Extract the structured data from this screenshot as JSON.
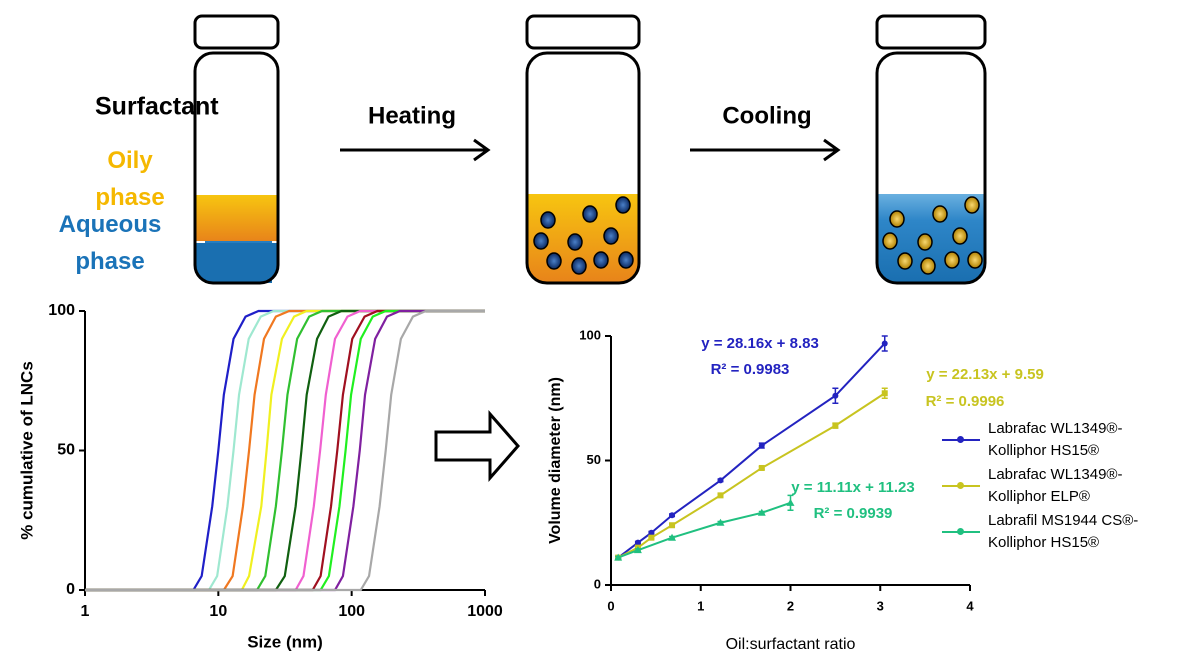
{
  "diagram": {
    "labels": {
      "surfactant": "Surfactant",
      "oily": "Oily phase",
      "aqueous": "Aqueous phase",
      "heating": "Heating",
      "cooling": "Cooling"
    }
  },
  "chart_data": [
    {
      "type": "line",
      "log_x": true,
      "ylabel": "% cumulative of LNCs",
      "xlabel": "Size (nm)",
      "xlim": [
        1,
        1000
      ],
      "ylim": [
        0,
        100
      ],
      "xticks": [
        1,
        10,
        100,
        1000
      ],
      "yticks": [
        0,
        50,
        100
      ],
      "series": [
        {
          "color": "#1f1fc8",
          "x": [
            1,
            6.5,
            7.5,
            9,
            10,
            11,
            13,
            16,
            20,
            1000
          ],
          "values": [
            0,
            0,
            5,
            30,
            50,
            70,
            90,
            98,
            100,
            100
          ]
        },
        {
          "color": "#9fe8d0",
          "x": [
            1,
            8.5,
            9.8,
            11.7,
            13,
            14.3,
            16.9,
            20.8,
            26,
            1000
          ],
          "values": [
            0,
            0,
            5,
            30,
            50,
            70,
            90,
            98,
            100,
            100
          ]
        },
        {
          "color": "#f07820",
          "x": [
            1,
            11,
            12.8,
            15.3,
            17,
            18.7,
            22,
            27,
            34,
            1000
          ],
          "values": [
            0,
            0,
            5,
            30,
            50,
            70,
            90,
            98,
            100,
            100
          ]
        },
        {
          "color": "#f0f020",
          "x": [
            1,
            15,
            17,
            21,
            23,
            25,
            30,
            37,
            46,
            1000
          ],
          "values": [
            0,
            0,
            5,
            30,
            50,
            70,
            90,
            98,
            100,
            100
          ]
        },
        {
          "color": "#30c030",
          "x": [
            1,
            19.5,
            22.5,
            27,
            30,
            33,
            39,
            48,
            60,
            1000
          ],
          "values": [
            0,
            0,
            5,
            30,
            50,
            70,
            90,
            98,
            100,
            100
          ]
        },
        {
          "color": "#106010",
          "x": [
            1,
            27,
            31.5,
            38,
            42,
            46,
            55,
            67,
            84,
            1000
          ],
          "values": [
            0,
            0,
            5,
            30,
            50,
            70,
            90,
            98,
            100,
            100
          ]
        },
        {
          "color": "#f060d0",
          "x": [
            1,
            38,
            43.5,
            52,
            58,
            64,
            75,
            93,
            116,
            1000
          ],
          "values": [
            0,
            0,
            5,
            30,
            50,
            70,
            90,
            98,
            100,
            100
          ]
        },
        {
          "color": "#a01020",
          "x": [
            1,
            51,
            58.5,
            70,
            78,
            86,
            101,
            125,
            156,
            1000
          ],
          "values": [
            0,
            0,
            5,
            30,
            50,
            70,
            90,
            98,
            100,
            100
          ]
        },
        {
          "color": "#20f020",
          "x": [
            1,
            58.5,
            67.5,
            81,
            90,
            99,
            117,
            144,
            180,
            1000
          ],
          "values": [
            0,
            0,
            5,
            30,
            50,
            70,
            90,
            98,
            100,
            100
          ]
        },
        {
          "color": "#8020a0",
          "x": [
            1,
            75,
            86,
            103,
            115,
            126,
            150,
            184,
            230,
            1000
          ],
          "values": [
            0,
            0,
            5,
            30,
            50,
            70,
            90,
            98,
            100,
            100
          ]
        },
        {
          "color": "#a8a8a8",
          "x": [
            1,
            117,
            135,
            162,
            180,
            198,
            234,
            288,
            360,
            1000
          ],
          "values": [
            0,
            0,
            5,
            30,
            50,
            70,
            90,
            98,
            100,
            100
          ]
        }
      ]
    },
    {
      "type": "scatter-line",
      "ylabel": "Volume diameter (nm)",
      "xlabel": "Oil:surfactant ratio",
      "xlim": [
        0,
        4
      ],
      "ylim": [
        0,
        100
      ],
      "xticks": [
        0,
        1,
        2,
        3,
        4
      ],
      "yticks": [
        0,
        50,
        100
      ],
      "series": [
        {
          "name": "Labrafac WL1349®-Kolliphor HS15®",
          "color": "#2323c0",
          "x": [
            0.08,
            0.3,
            0.45,
            0.68,
            1.22,
            1.68,
            2.5,
            3.05
          ],
          "values": [
            11,
            17,
            21,
            28,
            42,
            56,
            76,
            97
          ],
          "errors": [
            0.5,
            0.5,
            0.5,
            0.5,
            0.5,
            1,
            3,
            3
          ]
        },
        {
          "name": "Labrafac WL1349®-Kolliphor ELP®",
          "color": "#c8c420",
          "x": [
            0.08,
            0.3,
            0.45,
            0.68,
            1.22,
            1.68,
            2.5,
            3.05
          ],
          "values": [
            11,
            15,
            19,
            24,
            36,
            47,
            64,
            77
          ],
          "errors": [
            0.5,
            0.5,
            0.5,
            0.5,
            0.5,
            0.5,
            1,
            2
          ]
        },
        {
          "name": "Labrafil MS1944 CS®-Kolliphor HS15®",
          "color": "#20c080",
          "x": [
            0.08,
            0.3,
            0.68,
            1.22,
            1.68,
            2.0
          ],
          "values": [
            11,
            14,
            19,
            25,
            29,
            33
          ],
          "errors": [
            0.5,
            0.5,
            0.5,
            0.5,
            0.5,
            3
          ]
        }
      ],
      "annotations": [
        {
          "text": "y = 28.16x + 8.83",
          "color": "#2323c0"
        },
        {
          "text": "R² = 0.9983",
          "color": "#2323c0"
        },
        {
          "text": "y = 22.13x + 9.59",
          "color": "#c8c420"
        },
        {
          "text": "R² = 0.9996",
          "color": "#c8c420"
        },
        {
          "text": "y = 11.11x + 11.23",
          "color": "#20c080"
        },
        {
          "text": "R² = 0.9939",
          "color": "#20c080"
        }
      ]
    }
  ]
}
